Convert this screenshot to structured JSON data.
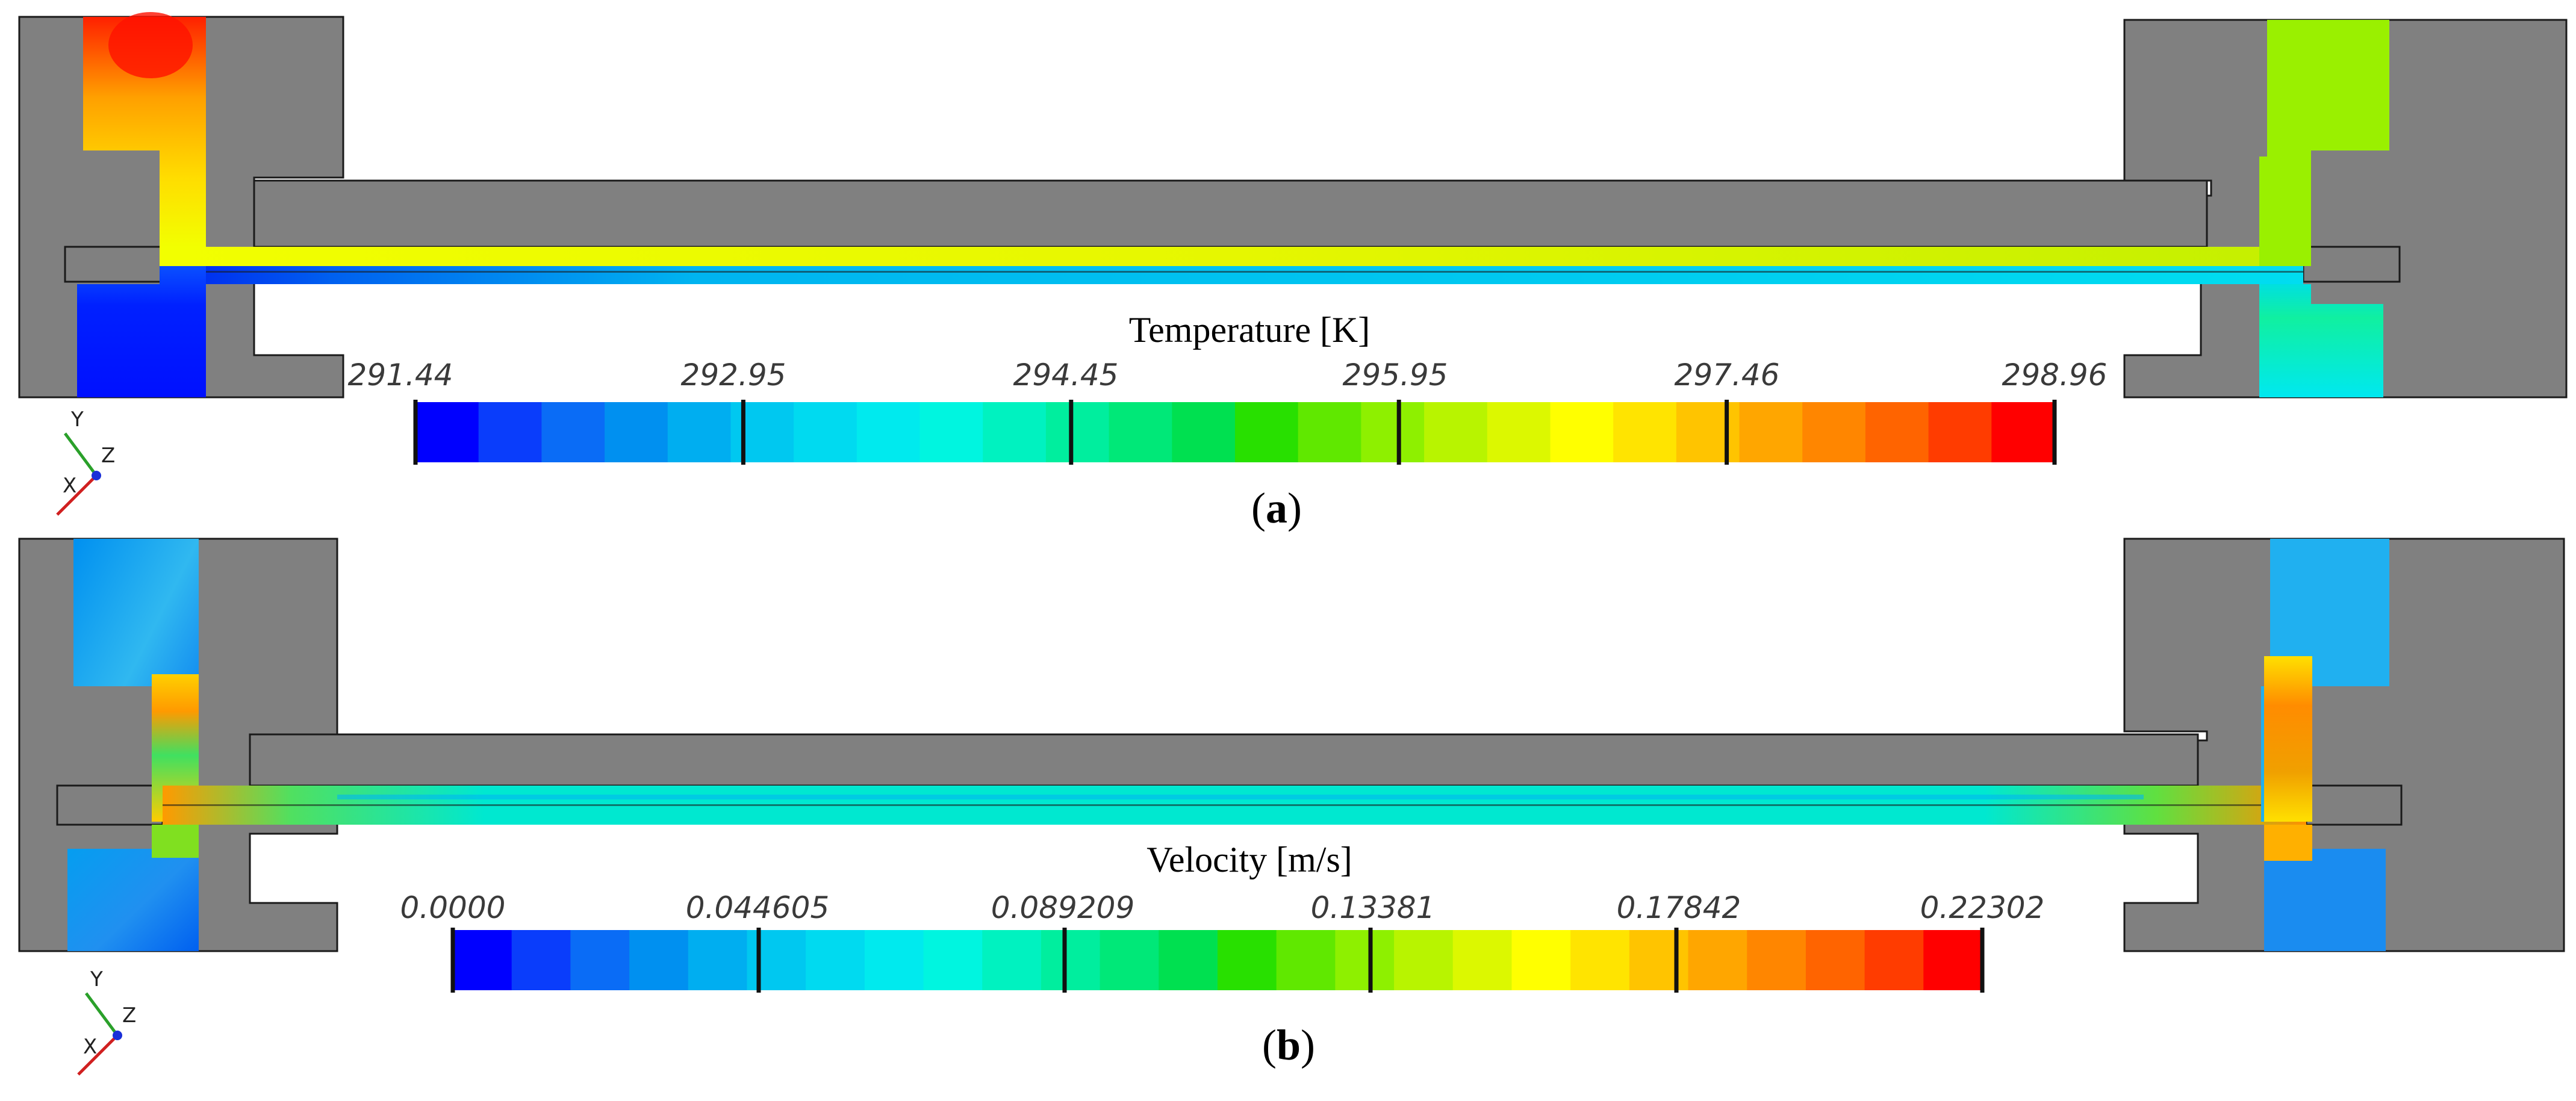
{
  "panels": [
    {
      "id": "a",
      "label": "a",
      "colorbar": {
        "title": "Temperature [K]",
        "ticks": [
          "291.44",
          "292.95",
          "294.45",
          "295.95",
          "297.46",
          "298.96"
        ],
        "min": 291.44,
        "max": 298.96
      },
      "axes": {
        "y": "Y",
        "z": "Z",
        "x": "X"
      }
    },
    {
      "id": "b",
      "label": "b",
      "colorbar": {
        "title": "Velocity [m/s]",
        "ticks": [
          "0.0000",
          "0.044605",
          "0.089209",
          "0.13381",
          "0.17842",
          "0.22302"
        ],
        "min": 0.0,
        "max": 0.22302
      },
      "axes": {
        "y": "Y",
        "z": "Z",
        "x": "X"
      }
    }
  ],
  "colors": {
    "solid": "#808080",
    "outline": "#1a1a1a",
    "colormap": [
      "#0000ff",
      "#0a3dfb",
      "#0a6cf6",
      "#0090f0",
      "#00aef0",
      "#00c8f0",
      "#00daf0",
      "#00eaee",
      "#00f5e0",
      "#00f2c0",
      "#00ee9e",
      "#00e878",
      "#00e050",
      "#28e000",
      "#60e800",
      "#8ef000",
      "#b8f400",
      "#dcf800",
      "#ffff00",
      "#ffe400",
      "#ffc400",
      "#ffa600",
      "#ff8600",
      "#ff6400",
      "#ff3c00",
      "#ff0000"
    ]
  }
}
